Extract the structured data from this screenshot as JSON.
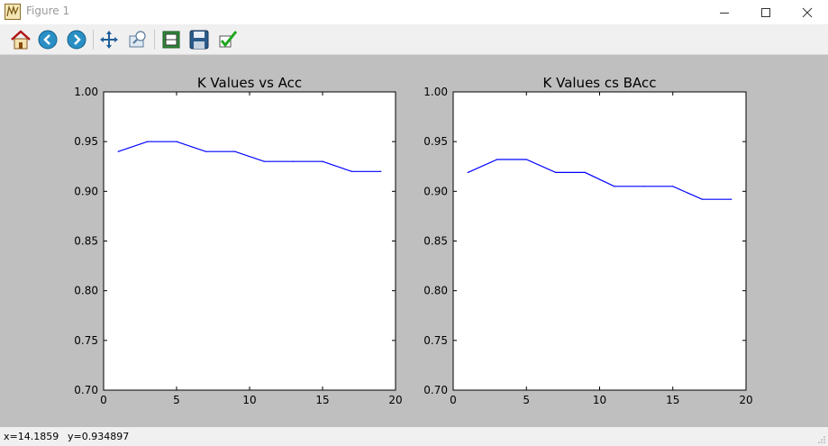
{
  "window": {
    "title": "Figure 1"
  },
  "toolbar": {
    "tools": [
      "home-icon",
      "back-arrow-icon",
      "forward-arrow-icon",
      "pan-icon",
      "zoom-icon",
      "subplots-icon",
      "save-icon",
      "check-icon"
    ]
  },
  "status": {
    "x": "x=14.1859",
    "y": "y=0.934897"
  },
  "colors": {
    "line": "#0000ff",
    "figure_bg": "#bfbfbf",
    "axes_bg": "#ffffff"
  },
  "chart_data": [
    {
      "type": "line",
      "title": "K Values vs Acc",
      "xlabel": "",
      "ylabel": "",
      "xlim": [
        0,
        20
      ],
      "ylim": [
        0.7,
        1.0
      ],
      "xticks": [
        "0",
        "5",
        "10",
        "15",
        "20"
      ],
      "yticks": [
        "0.70",
        "0.75",
        "0.80",
        "0.85",
        "0.90",
        "0.95",
        "1.00"
      ],
      "grid": false,
      "series": [
        {
          "x": [
            1,
            3,
            5,
            7,
            9,
            11,
            13,
            15,
            17,
            19
          ],
          "y": [
            0.94,
            0.95,
            0.95,
            0.94,
            0.94,
            0.93,
            0.93,
            0.93,
            0.92,
            0.92
          ]
        }
      ]
    },
    {
      "type": "line",
      "title": "K Values cs BAcc",
      "xlabel": "",
      "ylabel": "",
      "xlim": [
        0,
        20
      ],
      "ylim": [
        0.7,
        1.0
      ],
      "xticks": [
        "0",
        "5",
        "10",
        "15",
        "20"
      ],
      "yticks": [
        "0.70",
        "0.75",
        "0.80",
        "0.85",
        "0.90",
        "0.95",
        "1.00"
      ],
      "grid": false,
      "series": [
        {
          "x": [
            1,
            3,
            5,
            7,
            9,
            11,
            13,
            15,
            17,
            19
          ],
          "y": [
            0.919,
            0.932,
            0.932,
            0.919,
            0.919,
            0.905,
            0.905,
            0.905,
            0.892,
            0.892
          ]
        }
      ]
    }
  ]
}
